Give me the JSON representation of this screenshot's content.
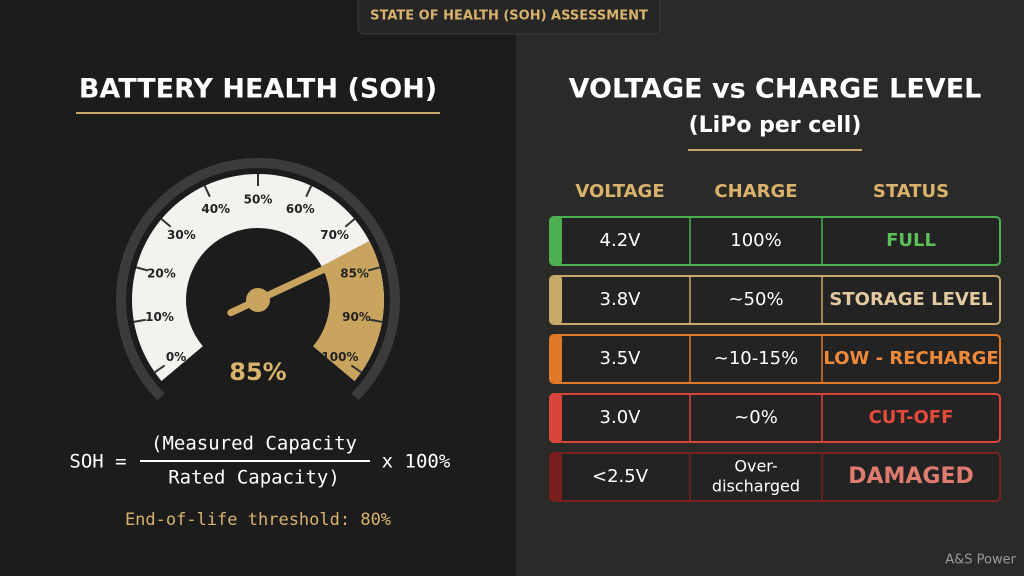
{
  "header": {
    "title": "STATE OF HEALTH (SOH) ASSESSMENT"
  },
  "gauge": {
    "title": "BATTERY HEALTH (SOH)",
    "tick_labels": [
      "0%",
      "10%",
      "20%",
      "30%",
      "40%",
      "50%",
      "60%",
      "70%",
      "85%",
      "90%",
      "100%"
    ],
    "value_label": "85%",
    "formula": {
      "lhs": "SOH =",
      "numerator": "(Measured Capacity",
      "denominator": "Rated Capacity)",
      "rhs": "x 100%"
    },
    "note": "End-of-life threshold: 80%"
  },
  "table": {
    "title": "VOLTAGE vs CHARGE LEVEL",
    "subtitle": "(LiPo per cell)",
    "columns": [
      "VOLTAGE",
      "CHARGE",
      "STATUS"
    ],
    "rows": [
      [
        "4.2V",
        "100%",
        "FULL"
      ],
      [
        "3.8V",
        "~50%",
        "STORAGE LEVEL"
      ],
      [
        "3.5V",
        "~10-15%",
        "LOW - RECHARGE"
      ],
      [
        "3.0V",
        "~0%",
        "CUT-OFF"
      ],
      [
        "<2.5V",
        [
          "Over-",
          "discharged"
        ],
        "DAMAGED"
      ]
    ]
  },
  "footer": {
    "credit": "A&S Power"
  }
}
